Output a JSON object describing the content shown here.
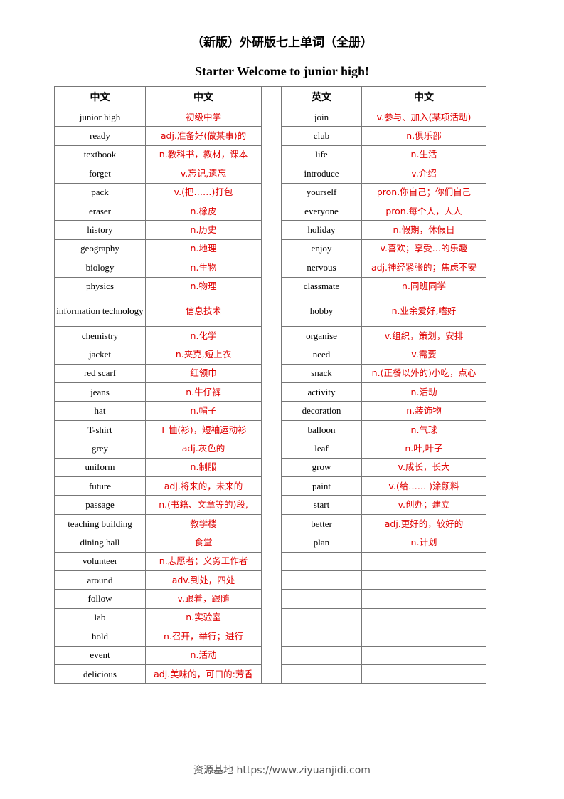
{
  "header": {
    "title": "（新版）外研版七上单词（全册）",
    "subtitle": "Starter Welcome to junior high!"
  },
  "left": {
    "header": [
      "中文",
      "中文"
    ],
    "rows": [
      [
        "junior high",
        "初级中学"
      ],
      [
        "ready",
        "adj.准备好(做某事)的"
      ],
      [
        "textbook",
        "n.教科书，教材，课本"
      ],
      [
        "forget",
        "v.忘记,遗忘"
      ],
      [
        "pack",
        "v.(把……)打包"
      ],
      [
        "eraser",
        "n.橡皮"
      ],
      [
        "history",
        "n.历史"
      ],
      [
        "geography",
        "n.地理"
      ],
      [
        "biology",
        "n.生物"
      ],
      [
        "physics",
        "n.物理"
      ],
      [
        "information technology",
        "信息技术"
      ],
      [
        "chemistry",
        "n.化学"
      ],
      [
        "jacket",
        "n.夹克,短上衣"
      ],
      [
        "red scarf",
        "红领巾"
      ],
      [
        "jeans",
        "n.牛仔裤"
      ],
      [
        "hat",
        "n.帽子"
      ],
      [
        "T-shirt",
        "T 恤(衫)，短袖运动衫"
      ],
      [
        "grey",
        "adj.灰色的"
      ],
      [
        "uniform",
        "n.制服"
      ],
      [
        "future",
        "adj.将来的，未来的"
      ],
      [
        "passage",
        "n.(书籍、文章等的)段,"
      ],
      [
        "teaching building",
        "教学楼"
      ],
      [
        "dining hall",
        "食堂"
      ],
      [
        "volunteer",
        "n.志愿者；义务工作者"
      ],
      [
        "around",
        "adv.到处，四处"
      ],
      [
        "follow",
        "v.跟着，跟随"
      ],
      [
        "lab",
        "n.实验室"
      ],
      [
        "hold",
        "n.召开，举行；进行"
      ],
      [
        "event",
        "n.活动"
      ],
      [
        "delicious",
        "adj.美味的，可口的:芳香"
      ]
    ]
  },
  "right": {
    "header": [
      "英文",
      "中文"
    ],
    "rows": [
      [
        "join",
        "v.参与、加入(某项活动)"
      ],
      [
        "club",
        "n.俱乐部"
      ],
      [
        "life",
        "n.生活"
      ],
      [
        "introduce",
        "v.介绍"
      ],
      [
        "yourself",
        "pron.你自己；你们自己"
      ],
      [
        "everyone",
        "pron.每个人，人人"
      ],
      [
        "holiday",
        "n.假期，休假日"
      ],
      [
        "enjoy",
        "v.喜欢；享受…的乐趣"
      ],
      [
        "nervous",
        "adj.神经紧张的；焦虑不安"
      ],
      [
        "classmate",
        "n.同班同学"
      ],
      [
        "hobby",
        "n.业余爱好,嗜好"
      ],
      [
        "organise",
        "v.组织，策划，安排"
      ],
      [
        "need",
        "v.需要"
      ],
      [
        "snack",
        "n.(正餐以外的)小吃，点心"
      ],
      [
        "activity",
        "n.活动"
      ],
      [
        "decoration",
        "n.装饰物"
      ],
      [
        "balloon",
        "n.气球"
      ],
      [
        "leaf",
        "n.叶,叶子"
      ],
      [
        "grow",
        "v.成长，长大"
      ],
      [
        "paint",
        "v.(给…… )涂颜料"
      ],
      [
        "start",
        "v.创办；建立"
      ],
      [
        "better",
        "adj.更好的，较好的"
      ],
      [
        "plan",
        "n.计划"
      ]
    ]
  },
  "footer": {
    "text": "资源基地 https://www.ziyuanjidi.com"
  }
}
